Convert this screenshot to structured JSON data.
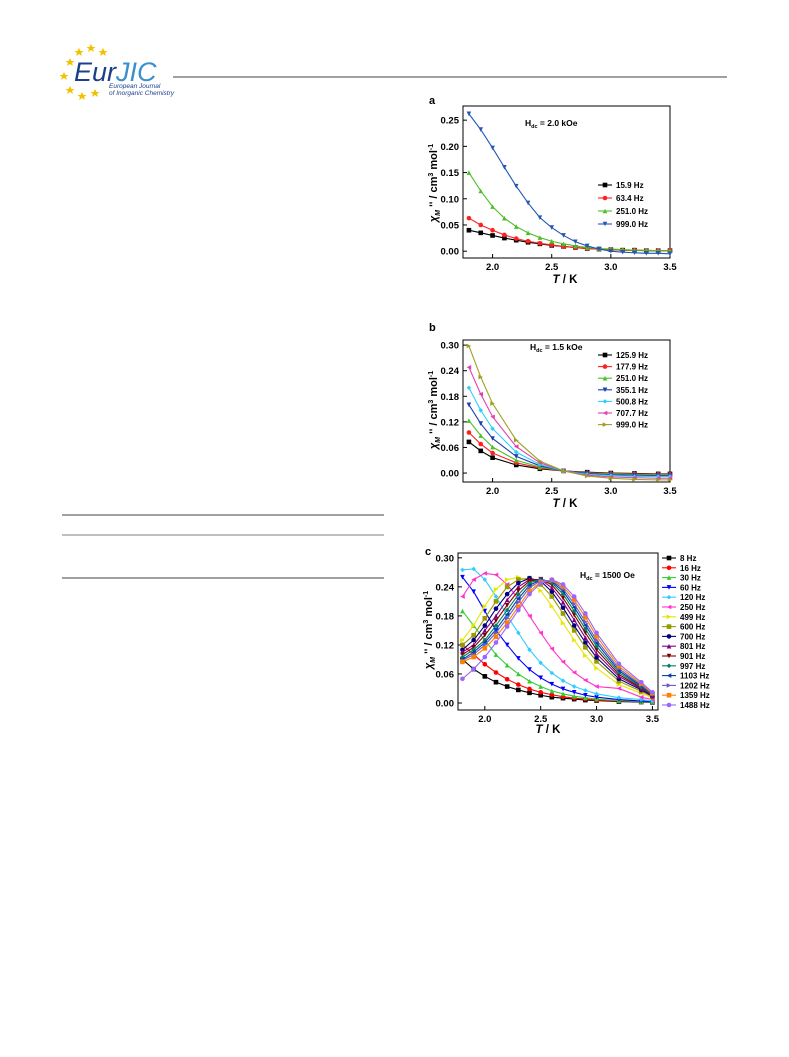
{
  "header": {
    "logo_left": "Eur",
    "logo_right": "JIC",
    "journal_line1": "European Journal",
    "journal_line2": "of Inorganic Chemistry"
  },
  "chart_data": [
    {
      "type": "line",
      "panel": "a",
      "annotation": [
        "H",
        "dc",
        " = 2.0 kOe"
      ],
      "y_label": [
        "χ",
        "M",
        " '' / cm",
        "3",
        " mol",
        "-1"
      ],
      "x_label": [
        "T",
        " / K"
      ],
      "legend": "lower right",
      "xlim": [
        1.75,
        3.5
      ],
      "ylim": [
        -0.013,
        0.277
      ],
      "xticks": [
        {
          "value": 2,
          "label": "2.0"
        },
        {
          "value": 2.5,
          "label": "2.5"
        },
        {
          "value": 3,
          "label": "3.0"
        },
        {
          "value": 3.5,
          "label": "3.5"
        }
      ],
      "yticks": [
        {
          "value": 0,
          "label": "0.00"
        },
        {
          "value": 0.05,
          "label": "0.05"
        },
        {
          "value": 0.1,
          "label": "0.10"
        },
        {
          "value": 0.15,
          "label": "0.15"
        },
        {
          "value": 0.2,
          "label": "0.20"
        },
        {
          "value": 0.25,
          "label": "0.25"
        }
      ],
      "x": [
        1.8,
        1.9,
        2.0,
        2.1,
        2.2,
        2.3,
        2.4,
        2.5,
        2.6,
        2.7,
        2.8,
        2.9,
        3.0,
        3.1,
        3.2,
        3.3,
        3.4,
        3.5
      ],
      "series": [
        {
          "name": "15.9 Hz",
          "color": "#000000",
          "values": [
            0.04,
            0.035,
            0.03,
            0.025,
            0.021,
            0.017,
            0.014,
            0.011,
            0.009,
            0.007,
            0.005,
            0.004,
            0.003,
            0.002,
            0.002,
            0.001,
            0.001,
            0.001
          ]
        },
        {
          "name": "63.4 Hz",
          "color": "#ff2020",
          "values": [
            0.063,
            0.05,
            0.04,
            0.031,
            0.024,
            0.019,
            0.015,
            0.012,
            0.009,
            0.007,
            0.005,
            0.004,
            0.003,
            0.002,
            0.002,
            0.001,
            0.001,
            0.001
          ]
        },
        {
          "name": "251.0 Hz",
          "color": "#4dbf26",
          "values": [
            0.15,
            0.115,
            0.085,
            0.063,
            0.047,
            0.035,
            0.026,
            0.019,
            0.014,
            0.01,
            0.007,
            0.005,
            0.004,
            0.003,
            0.002,
            0.002,
            0.001,
            0.001
          ]
        },
        {
          "name": "999.0 Hz",
          "color": "#2457b4",
          "values": [
            0.262,
            0.232,
            0.197,
            0.16,
            0.124,
            0.092,
            0.064,
            0.045,
            0.03,
            0.018,
            0.01,
            0.004,
            0.0,
            -0.002,
            -0.003,
            -0.004,
            -0.004,
            -0.005
          ]
        }
      ]
    },
    {
      "type": "line",
      "panel": "b",
      "annotation": [
        "H",
        "dc",
        " = 1.5 kOe"
      ],
      "y_label": [
        "χ",
        "M",
        " '' / cm",
        "3",
        " mol",
        "-1"
      ],
      "x_label": [
        "T",
        " / K"
      ],
      "legend": "upper right",
      "xlim": [
        1.75,
        3.5
      ],
      "ylim": [
        -0.021,
        0.312
      ],
      "xticks": [
        {
          "value": 2,
          "label": "2.0"
        },
        {
          "value": 2.5,
          "label": "2.5"
        },
        {
          "value": 3,
          "label": "3.0"
        },
        {
          "value": 3.5,
          "label": "3.5"
        }
      ],
      "yticks": [
        {
          "value": 0,
          "label": "0.00"
        },
        {
          "value": 0.06,
          "label": "0.06"
        },
        {
          "value": 0.12,
          "label": "0.12"
        },
        {
          "value": 0.18,
          "label": "0.18"
        },
        {
          "value": 0.24,
          "label": "0.24"
        },
        {
          "value": 0.3,
          "label": "0.30"
        }
      ],
      "x": [
        1.8,
        1.9,
        2.0,
        2.2,
        2.4,
        2.6,
        2.8,
        3.0,
        3.2,
        3.4,
        3.5
      ],
      "series": [
        {
          "name": "125.9 Hz",
          "color": "#000000",
          "values": [
            0.073,
            0.052,
            0.036,
            0.019,
            0.01,
            0.005,
            0.002,
            0.0,
            -0.001,
            -0.002,
            -0.002
          ]
        },
        {
          "name": "177.9 Hz",
          "color": "#ff2020",
          "values": [
            0.095,
            0.068,
            0.047,
            0.024,
            0.012,
            0.005,
            0.001,
            -0.001,
            -0.002,
            -0.003,
            -0.003
          ]
        },
        {
          "name": "251.0 Hz",
          "color": "#4dbf26",
          "values": [
            0.123,
            0.088,
            0.061,
            0.03,
            0.014,
            0.005,
            0.0,
            -0.002,
            -0.003,
            -0.004,
            -0.004
          ]
        },
        {
          "name": "355.1 Hz",
          "color": "#1c3fb3",
          "values": [
            0.16,
            0.116,
            0.081,
            0.039,
            0.017,
            0.005,
            -0.001,
            -0.004,
            -0.005,
            -0.006,
            -0.006
          ]
        },
        {
          "name": "500.8 Hz",
          "color": "#33ccff",
          "values": [
            0.2,
            0.147,
            0.104,
            0.049,
            0.02,
            0.005,
            -0.003,
            -0.006,
            -0.008,
            -0.008,
            -0.008
          ]
        },
        {
          "name": "707.7 Hz",
          "color": "#e040b0",
          "values": [
            0.248,
            0.185,
            0.132,
            0.062,
            0.024,
            0.005,
            -0.005,
            -0.009,
            -0.011,
            -0.012,
            -0.012
          ]
        },
        {
          "name": "999.0 Hz",
          "color": "#a0a020",
          "values": [
            0.298,
            0.225,
            0.163,
            0.077,
            0.028,
            0.005,
            -0.007,
            -0.012,
            -0.015,
            -0.016,
            -0.016
          ]
        }
      ]
    },
    {
      "type": "line",
      "panel": "c",
      "annotation": [
        "H",
        "dc",
        " = 1500 Oe"
      ],
      "y_label": [
        "χ",
        "M",
        " '' / cm",
        "3",
        " mol",
        "-1"
      ],
      "x_label": [
        "T",
        " / K"
      ],
      "legend": "outside right",
      "xlim": [
        1.76,
        3.55
      ],
      "ylim": [
        -0.0145,
        0.31
      ],
      "xticks": [
        {
          "value": 2,
          "label": "2.0"
        },
        {
          "value": 2.5,
          "label": "2.5"
        },
        {
          "value": 3,
          "label": "3.0"
        },
        {
          "value": 3.5,
          "label": "3.5"
        }
      ],
      "yticks": [
        {
          "value": 0,
          "label": "0.00"
        },
        {
          "value": 0.06,
          "label": "0.06"
        },
        {
          "value": 0.12,
          "label": "0.12"
        },
        {
          "value": 0.18,
          "label": "0.18"
        },
        {
          "value": 0.24,
          "label": "0.24"
        },
        {
          "value": 0.3,
          "label": "0.30"
        }
      ],
      "x": [
        1.8,
        1.9,
        2.0,
        2.1,
        2.2,
        2.3,
        2.4,
        2.5,
        2.6,
        2.7,
        2.8,
        2.9,
        3.0,
        3.2,
        3.4,
        3.5
      ],
      "series": [
        {
          "name": "8 Hz",
          "color": "#000000",
          "values": [
            0.09,
            0.07,
            0.055,
            0.043,
            0.034,
            0.027,
            0.021,
            0.016,
            0.012,
            0.01,
            0.008,
            0.006,
            0.005,
            0.003,
            0.002,
            0.001
          ]
        },
        {
          "name": "16 Hz",
          "color": "#ff0000",
          "values": [
            0.12,
            0.1,
            0.08,
            0.063,
            0.049,
            0.038,
            0.029,
            0.022,
            0.017,
            0.013,
            0.01,
            0.008,
            0.006,
            0.004,
            0.003,
            0.002
          ]
        },
        {
          "name": "30 Hz",
          "color": "#33cc33",
          "values": [
            0.19,
            0.16,
            0.13,
            0.1,
            0.078,
            0.06,
            0.045,
            0.034,
            0.025,
            0.019,
            0.014,
            0.011,
            0.008,
            0.005,
            0.003,
            0.002
          ]
        },
        {
          "name": "60 Hz",
          "color": "#0000ff",
          "values": [
            0.26,
            0.23,
            0.19,
            0.15,
            0.12,
            0.092,
            0.069,
            0.052,
            0.039,
            0.029,
            0.022,
            0.016,
            0.012,
            0.007,
            0.004,
            0.003
          ]
        },
        {
          "name": "120 Hz",
          "color": "#33ccff",
          "values": [
            0.275,
            0.277,
            0.255,
            0.22,
            0.18,
            0.145,
            0.11,
            0.083,
            0.062,
            0.046,
            0.034,
            0.026,
            0.019,
            0.011,
            0.007,
            0.004
          ]
        },
        {
          "name": "250 Hz",
          "color": "#ff33cc",
          "values": [
            0.22,
            0.255,
            0.268,
            0.265,
            0.245,
            0.215,
            0.18,
            0.145,
            0.112,
            0.085,
            0.063,
            0.047,
            0.034,
            0.03,
            0.012,
            0.007
          ]
        },
        {
          "name": "499 Hz",
          "color": "#e6e600",
          "values": [
            0.13,
            0.16,
            0.2,
            0.235,
            0.255,
            0.26,
            0.252,
            0.232,
            0.2,
            0.165,
            0.13,
            0.098,
            0.072,
            0.038,
            0.02,
            0.011
          ]
        },
        {
          "name": "600 Hz",
          "color": "#999900",
          "values": [
            0.12,
            0.14,
            0.175,
            0.21,
            0.24,
            0.255,
            0.258,
            0.245,
            0.22,
            0.185,
            0.15,
            0.115,
            0.086,
            0.045,
            0.024,
            0.013
          ]
        },
        {
          "name": "700 Hz",
          "color": "#000080",
          "values": [
            0.11,
            0.13,
            0.16,
            0.195,
            0.225,
            0.248,
            0.258,
            0.252,
            0.23,
            0.197,
            0.16,
            0.125,
            0.094,
            0.05,
            0.027,
            0.014
          ]
        },
        {
          "name": "801 Hz",
          "color": "#800080",
          "values": [
            0.105,
            0.12,
            0.15,
            0.18,
            0.213,
            0.24,
            0.255,
            0.255,
            0.238,
            0.208,
            0.172,
            0.135,
            0.102,
            0.055,
            0.029,
            0.015
          ]
        },
        {
          "name": "901 Hz",
          "color": "#800000",
          "values": [
            0.1,
            0.115,
            0.14,
            0.17,
            0.202,
            0.232,
            0.252,
            0.256,
            0.244,
            0.217,
            0.182,
            0.145,
            0.11,
            0.059,
            0.031,
            0.016
          ]
        },
        {
          "name": "997 Hz",
          "color": "#008060",
          "values": [
            0.095,
            0.11,
            0.13,
            0.16,
            0.192,
            0.224,
            0.248,
            0.256,
            0.248,
            0.225,
            0.19,
            0.153,
            0.117,
            0.063,
            0.033,
            0.017
          ]
        },
        {
          "name": "1103 Hz",
          "color": "#0040a0",
          "values": [
            0.09,
            0.105,
            0.125,
            0.152,
            0.183,
            0.216,
            0.243,
            0.255,
            0.251,
            0.231,
            0.198,
            0.161,
            0.124,
            0.067,
            0.035,
            0.018
          ]
        },
        {
          "name": "1202 Hz",
          "color": "#6a5acd",
          "values": [
            0.088,
            0.1,
            0.12,
            0.145,
            0.175,
            0.208,
            0.238,
            0.253,
            0.253,
            0.236,
            0.205,
            0.168,
            0.13,
            0.071,
            0.037,
            0.019
          ]
        },
        {
          "name": "1359 Hz",
          "color": "#ff8000",
          "values": [
            0.085,
            0.095,
            0.113,
            0.137,
            0.166,
            0.199,
            0.231,
            0.25,
            0.254,
            0.241,
            0.213,
            0.177,
            0.138,
            0.076,
            0.04,
            0.02
          ]
        },
        {
          "name": "1488 Hz",
          "color": "#9966ff",
          "values": [
            0.05,
            0.07,
            0.095,
            0.125,
            0.158,
            0.192,
            0.225,
            0.248,
            0.255,
            0.245,
            0.22,
            0.185,
            0.145,
            0.081,
            0.043,
            0.022
          ]
        }
      ]
    }
  ]
}
